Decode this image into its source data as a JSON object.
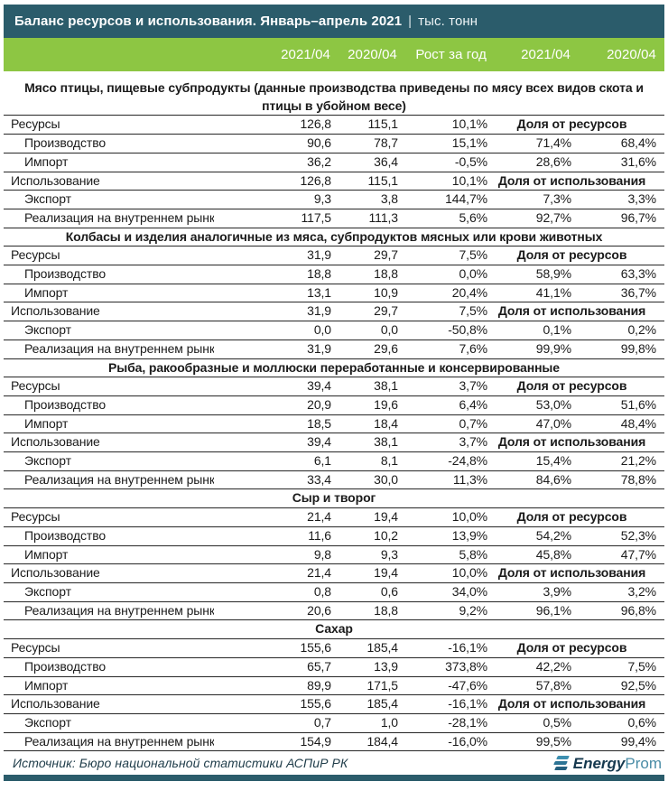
{
  "header": {
    "title": "Баланс ресурсов и использования. Январь–апрель 2021",
    "separator": "|",
    "unit": "тыс. тонн"
  },
  "footer": {
    "source": "Источник: Бюро национальной статистики АСПиР РК",
    "logo_energy": "Energy",
    "logo_prom": "Prom"
  },
  "colors": {
    "header_bg": "#2b5c6b",
    "columns_bg": "#8dc643",
    "border": "#262626"
  },
  "chart_data": {
    "type": "table",
    "title": "Баланс ресурсов и использования. Январь–апрель 2021",
    "unit": "тыс. тонн",
    "columns": [
      "2021/04",
      "2020/04",
      "Рост за год",
      "2021/04",
      "2020/04"
    ],
    "sections": [
      {
        "title": "Мясо птицы, пищевые субпродукты (данные производства приведены по мясу всех видов скота и птицы в убойном весе)",
        "rows": [
          {
            "label": "Ресурсы",
            "indent": 0,
            "c1": "126,8",
            "c2": "115,1",
            "growth": "10,1%",
            "share_label": "Доля от ресурсов"
          },
          {
            "label": "Производство",
            "indent": 1,
            "c1": "90,6",
            "c2": "78,7",
            "growth": "15,1%",
            "s1": "71,4%",
            "s2": "68,4%"
          },
          {
            "label": "Импорт",
            "indent": 1,
            "c1": "36,2",
            "c2": "36,4",
            "growth": "-0,5%",
            "s1": "28,6%",
            "s2": "31,6%"
          },
          {
            "label": "Использование",
            "indent": 0,
            "c1": "126,8",
            "c2": "115,1",
            "growth": "10,1%",
            "share_label": "Доля от использования"
          },
          {
            "label": "Экспорт",
            "indent": 1,
            "c1": "9,3",
            "c2": "3,8",
            "growth": "144,7%",
            "s1": "7,3%",
            "s2": "3,3%"
          },
          {
            "label": "Реализация на внутреннем рынке",
            "indent": 1,
            "c1": "117,5",
            "c2": "111,3",
            "growth": "5,6%",
            "s1": "92,7%",
            "s2": "96,7%"
          }
        ]
      },
      {
        "title": "Колбасы и изделия аналогичные из мяса, субпродуктов мясных или крови животных",
        "rows": [
          {
            "label": "Ресурсы",
            "indent": 0,
            "c1": "31,9",
            "c2": "29,7",
            "growth": "7,5%",
            "share_label": "Доля от ресурсов"
          },
          {
            "label": "Производство",
            "indent": 1,
            "c1": "18,8",
            "c2": "18,8",
            "growth": "0,0%",
            "s1": "58,9%",
            "s2": "63,3%"
          },
          {
            "label": "Импорт",
            "indent": 1,
            "c1": "13,1",
            "c2": "10,9",
            "growth": "20,4%",
            "s1": "41,1%",
            "s2": "36,7%"
          },
          {
            "label": "Использование",
            "indent": 0,
            "c1": "31,9",
            "c2": "29,7",
            "growth": "7,5%",
            "share_label": "Доля от использования"
          },
          {
            "label": "Экспорт",
            "indent": 1,
            "c1": "0,0",
            "c2": "0,0",
            "growth": "-50,8%",
            "s1": "0,1%",
            "s2": "0,2%"
          },
          {
            "label": "Реализация на внутреннем рынке",
            "indent": 1,
            "c1": "31,9",
            "c2": "29,6",
            "growth": "7,6%",
            "s1": "99,9%",
            "s2": "99,8%"
          }
        ]
      },
      {
        "title": "Рыба, ракообразные и моллюски переработанные и консервированные",
        "rows": [
          {
            "label": "Ресурсы",
            "indent": 0,
            "c1": "39,4",
            "c2": "38,1",
            "growth": "3,7%",
            "share_label": "Доля от ресурсов"
          },
          {
            "label": "Производство",
            "indent": 1,
            "c1": "20,9",
            "c2": "19,6",
            "growth": "6,4%",
            "s1": "53,0%",
            "s2": "51,6%"
          },
          {
            "label": "Импорт",
            "indent": 1,
            "c1": "18,5",
            "c2": "18,4",
            "growth": "0,7%",
            "s1": "47,0%",
            "s2": "48,4%"
          },
          {
            "label": "Использование",
            "indent": 0,
            "c1": "39,4",
            "c2": "38,1",
            "growth": "3,7%",
            "share_label": "Доля от использования"
          },
          {
            "label": "Экспорт",
            "indent": 1,
            "c1": "6,1",
            "c2": "8,1",
            "growth": "-24,8%",
            "s1": "15,4%",
            "s2": "21,2%"
          },
          {
            "label": "Реализация на внутреннем рынке",
            "indent": 1,
            "c1": "33,4",
            "c2": "30,0",
            "growth": "11,3%",
            "s1": "84,6%",
            "s2": "78,8%"
          }
        ]
      },
      {
        "title": "Сыр и творог",
        "rows": [
          {
            "label": "Ресурсы",
            "indent": 0,
            "c1": "21,4",
            "c2": "19,4",
            "growth": "10,0%",
            "share_label": "Доля от ресурсов"
          },
          {
            "label": "Производство",
            "indent": 1,
            "c1": "11,6",
            "c2": "10,2",
            "growth": "13,9%",
            "s1": "54,2%",
            "s2": "52,3%"
          },
          {
            "label": "Импорт",
            "indent": 1,
            "c1": "9,8",
            "c2": "9,3",
            "growth": "5,8%",
            "s1": "45,8%",
            "s2": "47,7%"
          },
          {
            "label": "Использование",
            "indent": 0,
            "c1": "21,4",
            "c2": "19,4",
            "growth": "10,0%",
            "share_label": "Доля от использования"
          },
          {
            "label": "Экспорт",
            "indent": 1,
            "c1": "0,8",
            "c2": "0,6",
            "growth": "34,0%",
            "s1": "3,9%",
            "s2": "3,2%"
          },
          {
            "label": "Реализация на внутреннем рынке",
            "indent": 1,
            "c1": "20,6",
            "c2": "18,8",
            "growth": "9,2%",
            "s1": "96,1%",
            "s2": "96,8%"
          }
        ]
      },
      {
        "title": "Сахар",
        "rows": [
          {
            "label": "Ресурсы",
            "indent": 0,
            "c1": "155,6",
            "c2": "185,4",
            "growth": "-16,1%",
            "share_label": "Доля от ресурсов"
          },
          {
            "label": "Производство",
            "indent": 1,
            "c1": "65,7",
            "c2": "13,9",
            "growth": "373,8%",
            "s1": "42,2%",
            "s2": "7,5%"
          },
          {
            "label": "Импорт",
            "indent": 1,
            "c1": "89,9",
            "c2": "171,5",
            "growth": "-47,6%",
            "s1": "57,8%",
            "s2": "92,5%"
          },
          {
            "label": "Использование",
            "indent": 0,
            "c1": "155,6",
            "c2": "185,4",
            "growth": "-16,1%",
            "share_label": "Доля от использования"
          },
          {
            "label": "Экспорт",
            "indent": 1,
            "c1": "0,7",
            "c2": "1,0",
            "growth": "-28,1%",
            "s1": "0,5%",
            "s2": "0,6%"
          },
          {
            "label": "Реализация на внутреннем рынке",
            "indent": 1,
            "c1": "154,9",
            "c2": "184,4",
            "growth": "-16,0%",
            "s1": "99,5%",
            "s2": "99,4%"
          }
        ]
      }
    ]
  }
}
